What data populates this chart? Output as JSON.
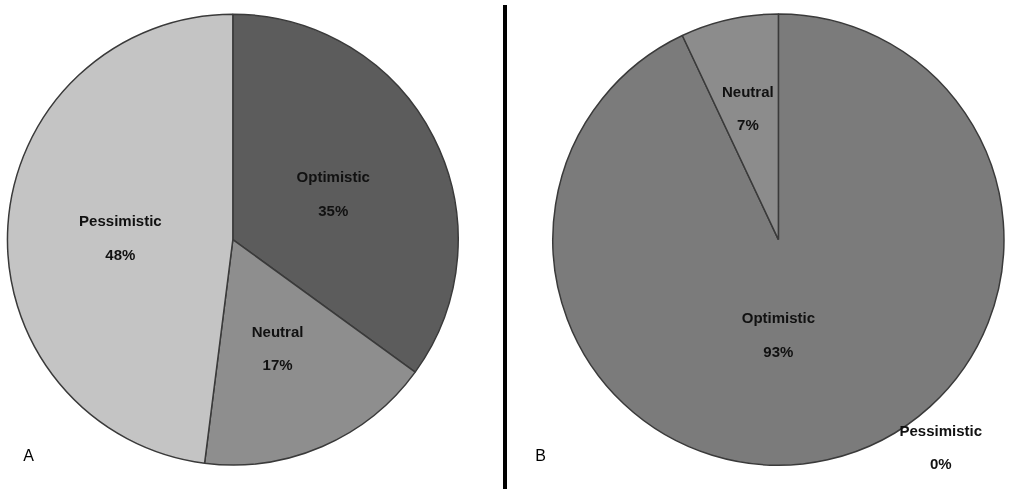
{
  "chart_data": [
    {
      "type": "pie",
      "categories": [
        "Optimistic",
        "Neutral",
        "Pessimistic"
      ],
      "values": [
        35,
        17,
        48
      ],
      "value_labels": [
        "35%",
        "17%",
        "48%"
      ],
      "colors": [
        "#5c5c5c",
        "#8e8e8e",
        "#c4c4c4"
      ],
      "annotations": [
        "A"
      ]
    },
    {
      "type": "pie",
      "categories": [
        "Optimistic",
        "Neutral",
        "Pessimistic"
      ],
      "values": [
        93,
        7,
        0
      ],
      "value_labels": [
        "93%",
        "7%",
        "0%"
      ],
      "colors": [
        "#7b7b7b",
        "#8c8c8c",
        "#c4c4c4"
      ],
      "annotations": [
        "B"
      ]
    }
  ]
}
